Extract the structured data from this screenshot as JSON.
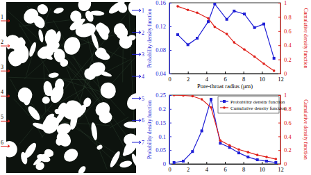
{
  "chart_data": [
    {
      "type": "line",
      "xlabel": "Pore-throat radius (μm)",
      "ylabel": "Probability density function",
      "y2label": "Cumulative density function",
      "x": [
        0.9,
        2,
        3,
        4.2,
        4.9,
        6.2,
        7,
        8.1,
        9.2,
        10.2,
        11.3
      ],
      "xlim": [
        0,
        12
      ],
      "xticks": [
        0,
        2,
        4,
        6,
        8,
        10,
        12
      ],
      "ylim": [
        0.04,
        0.16
      ],
      "yticks": [
        0.04,
        0.08,
        0.12,
        0.16
      ],
      "y2lim": [
        0,
        1
      ],
      "y2ticks": [
        0,
        0.2,
        0.4,
        0.6,
        0.8,
        1
      ],
      "series": [
        {
          "color": "#1f1fd6",
          "marker": "square",
          "values": [
            0.106,
            0.089,
            0.1,
            0.128,
            0.158,
            0.132,
            0.146,
            0.141,
            0.118,
            0.124,
            0.066
          ]
        },
        {
          "color": "#e0201a",
          "marker": "circle",
          "axis": "y2",
          "values": [
            0.95,
            0.9,
            0.86,
            0.78,
            0.66,
            0.56,
            0.44,
            0.34,
            0.24,
            0.14,
            0.04
          ]
        }
      ]
    },
    {
      "type": "line",
      "ylabel": "Probability density function",
      "y2label": "Cumulative density function",
      "x": [
        0.5,
        1.5,
        2.5,
        3.5,
        4.5,
        5.5,
        6.5,
        7.5,
        8.5,
        9.5,
        10.5,
        11.5
      ],
      "xlim": [
        0,
        12
      ],
      "xticks": [
        0,
        2,
        4,
        6,
        8,
        10,
        12
      ],
      "ylim": [
        0,
        0.25
      ],
      "yticks": [
        0,
        0.05,
        0.1,
        0.15,
        0.2,
        0.25
      ],
      "y2lim": [
        0,
        1
      ],
      "y2ticks": [
        0,
        0.2,
        0.4,
        0.6,
        0.8,
        1
      ],
      "legend": "upper right",
      "series": [
        {
          "name": "Probability density function",
          "color": "#1f1fd6",
          "marker": "square",
          "values": [
            0.005,
            0.01,
            0.045,
            0.12,
            0.235,
            0.075,
            0.06,
            0.04,
            0.025,
            0.015,
            0.01,
            0.005
          ]
        },
        {
          "name": "Cumulative density function",
          "color": "#e0201a",
          "marker": "circle",
          "axis": "y2",
          "values": [
            1,
            0.995,
            0.985,
            0.94,
            0.82,
            0.34,
            0.27,
            0.21,
            0.17,
            0.13,
            0.1,
            0.07
          ]
        }
      ]
    }
  ],
  "micrograph": {
    "left_labels": [
      "1",
      "2",
      "3",
      "4",
      "5",
      "6"
    ],
    "right_labels": [
      "1",
      "2",
      "3",
      "4",
      "5",
      "6",
      "7"
    ]
  }
}
